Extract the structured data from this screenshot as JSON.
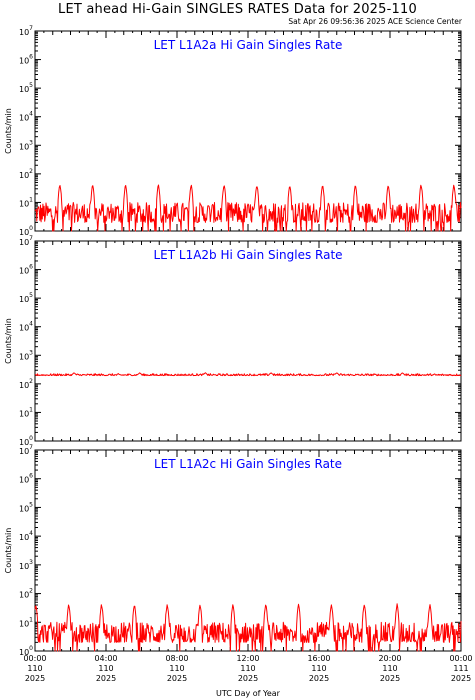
{
  "header": {
    "title": "LET ahead Hi-Gain SINGLES RATES Data for 2025-110",
    "timestamp": "Sat Apr 26 09:56:36 2025 ACE Science Center"
  },
  "colors": {
    "series": "#ff0000",
    "panel_title": "#0000ff",
    "axes": "#000000"
  },
  "chart_data": [
    {
      "type": "line",
      "title": "LET L1A2a Hi Gain Singles Rate",
      "ylabel": "Counts/min",
      "yscale": "log",
      "ylim": [
        1,
        10000000
      ],
      "ytick_labels": [
        {
          "base": "10",
          "exp": "0"
        },
        {
          "base": "10",
          "exp": "1"
        },
        {
          "base": "10",
          "exp": "2"
        },
        {
          "base": "10",
          "exp": "3"
        },
        {
          "base": "10",
          "exp": "4"
        },
        {
          "base": "10",
          "exp": "5"
        },
        {
          "base": "10",
          "exp": "6"
        },
        {
          "base": "10",
          "exp": "7"
        }
      ],
      "pattern": {
        "baseline": 5,
        "jitter_low": 2,
        "jitter_high": 10,
        "peak": 45,
        "peak_period_hours": 1.85,
        "first_peak_hour": 1.4
      }
    },
    {
      "type": "line",
      "title": "LET L1A2b Hi Gain Singles Rate",
      "ylabel": "Counts/min",
      "yscale": "log",
      "ylim": [
        1,
        10000000
      ],
      "ytick_labels": [
        {
          "base": "10",
          "exp": "0"
        },
        {
          "base": "10",
          "exp": "1"
        },
        {
          "base": "10",
          "exp": "2"
        },
        {
          "base": "10",
          "exp": "3"
        },
        {
          "base": "10",
          "exp": "4"
        },
        {
          "base": "10",
          "exp": "5"
        },
        {
          "base": "10",
          "exp": "6"
        },
        {
          "base": "10",
          "exp": "7"
        }
      ],
      "pattern": {
        "baseline": 210,
        "jitter_low": 195,
        "jitter_high": 228,
        "peak": 245,
        "peak_period_hours": 3.7,
        "first_peak_hour": 2.2
      }
    },
    {
      "type": "line",
      "title": "LET L1A2c Hi Gain Singles Rate",
      "ylabel": "Counts/min",
      "yscale": "log",
      "ylim": [
        1,
        10000000
      ],
      "ytick_labels": [
        {
          "base": "10",
          "exp": "0"
        },
        {
          "base": "10",
          "exp": "1"
        },
        {
          "base": "10",
          "exp": "2"
        },
        {
          "base": "10",
          "exp": "3"
        },
        {
          "base": "10",
          "exp": "4"
        },
        {
          "base": "10",
          "exp": "5"
        },
        {
          "base": "10",
          "exp": "6"
        },
        {
          "base": "10",
          "exp": "7"
        }
      ],
      "pattern": {
        "baseline": 5,
        "jitter_low": 2,
        "jitter_high": 10,
        "peak": 45,
        "peak_period_hours": 1.85,
        "first_peak_hour": 1.9
      }
    }
  ],
  "x_axis": {
    "label": "UTC Day of Year",
    "xlim_hours": [
      0,
      24
    ],
    "ticks": [
      {
        "hour": 0,
        "time": "00:00",
        "day": "110",
        "year": "2025"
      },
      {
        "hour": 4,
        "time": "04:00",
        "day": "110",
        "year": "2025"
      },
      {
        "hour": 8,
        "time": "08:00",
        "day": "110",
        "year": "2025"
      },
      {
        "hour": 12,
        "time": "12:00",
        "day": "110",
        "year": "2025"
      },
      {
        "hour": 16,
        "time": "16:00",
        "day": "110",
        "year": "2025"
      },
      {
        "hour": 20,
        "time": "20:00",
        "day": "110",
        "year": "2025"
      },
      {
        "hour": 24,
        "time": "00:00",
        "day": "111",
        "year": "2025"
      }
    ]
  }
}
